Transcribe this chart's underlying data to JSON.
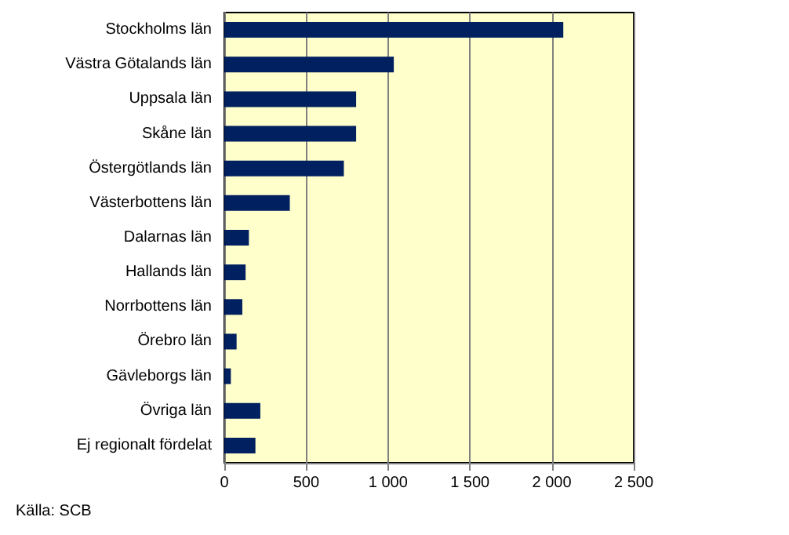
{
  "chart_data": {
    "type": "bar",
    "orientation": "horizontal",
    "categories": [
      "Stockholms län",
      "Västra Götalands län",
      "Uppsala län",
      "Skåne län",
      "Östergötlands län",
      "Västerbottens län",
      "Dalarnas län",
      "Hallands län",
      "Norrbottens län",
      "Örebro län",
      "Gävleborgs län",
      "Övriga län",
      "Ej regionalt fördelat"
    ],
    "values": [
      2070,
      1035,
      805,
      805,
      730,
      400,
      150,
      130,
      110,
      75,
      40,
      220,
      190
    ],
    "color": "#002060",
    "xlim": [
      0,
      2500
    ],
    "xticks": [
      0,
      500,
      {
        "value": 1000,
        "label": "1 000"
      },
      {
        "value": 1500,
        "label": "1 500"
      },
      {
        "value": 2000,
        "label": "2 000"
      },
      {
        "value": 2500,
        "label": "2 500"
      }
    ],
    "grid": "x",
    "annotations": [
      "Källa: SCB"
    ]
  }
}
